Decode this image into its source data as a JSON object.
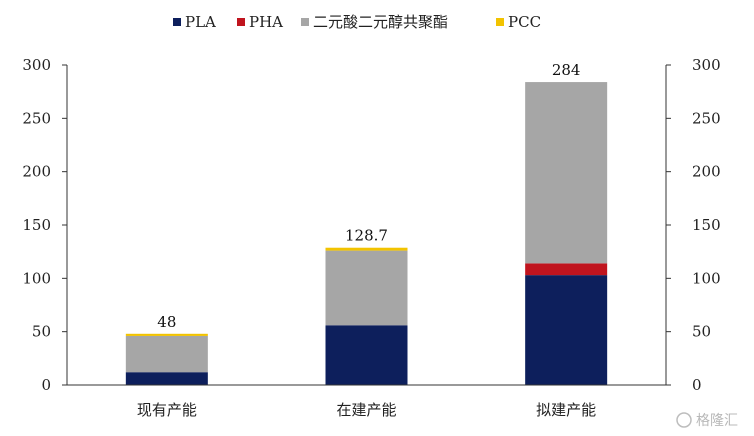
{
  "chart_data": {
    "type": "bar",
    "stacked": true,
    "categories": [
      "现有产能",
      "在建产能",
      "拟建产能"
    ],
    "series": [
      {
        "name": "PLA",
        "color": "#0d1f5c",
        "values": [
          12,
          56,
          103
        ]
      },
      {
        "name": "PHA",
        "color": "#c0141e",
        "values": [
          0,
          0,
          11
        ]
      },
      {
        "name": "二元酸二元醇共聚酯",
        "color": "#a6a6a6",
        "values": [
          34,
          70,
          170
        ]
      },
      {
        "name": "PCC",
        "color": "#f2c300",
        "values": [
          2,
          2.7,
          0
        ]
      }
    ],
    "totals": [
      "48",
      "128.7",
      "284"
    ],
    "ylim": [
      0,
      300
    ],
    "yticks": [
      0,
      50,
      100,
      150,
      200,
      250,
      300
    ],
    "secondary_yticks": [
      0,
      50,
      100,
      150,
      200,
      250,
      300
    ],
    "legend_position": "top",
    "grid": false
  },
  "watermark": "格隆汇"
}
